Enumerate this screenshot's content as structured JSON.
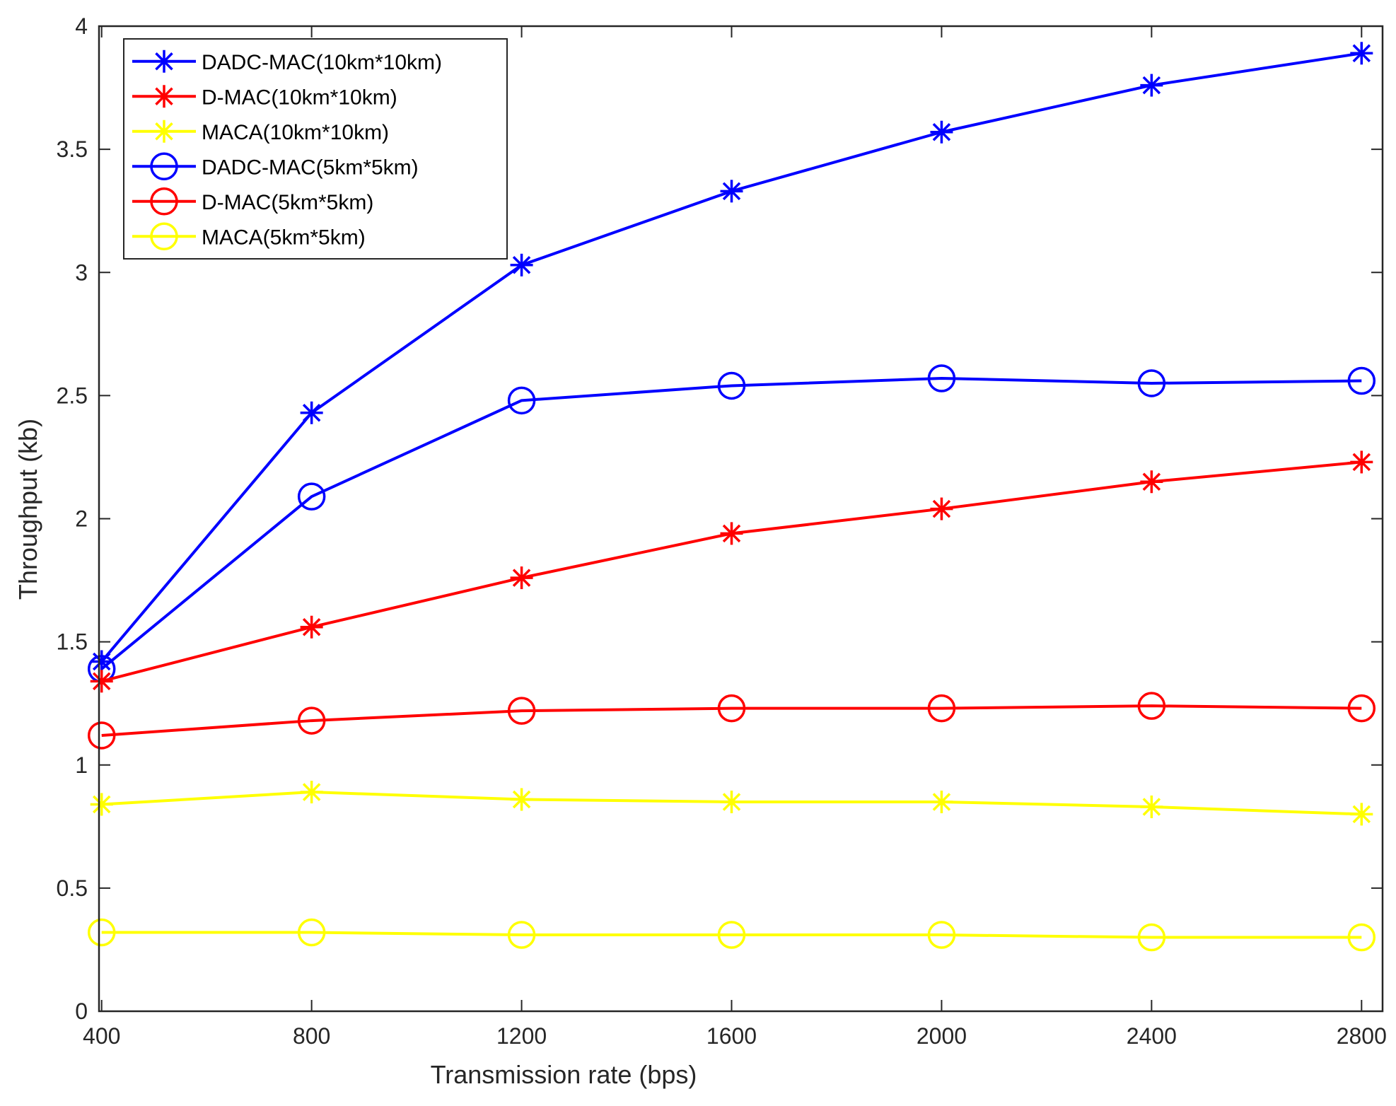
{
  "chart_data": {
    "type": "line",
    "title": "",
    "xlabel": "Transmission rate (bps)",
    "ylabel": "Throughput (kb)",
    "x": [
      400,
      800,
      1200,
      1600,
      2000,
      2400,
      2800
    ],
    "x_ticks": [
      400,
      800,
      1200,
      1600,
      2000,
      2400,
      2800
    ],
    "x_tick_labels": [
      "400",
      "800",
      "1200",
      "1600",
      "2000",
      "2400",
      "2800"
    ],
    "y_ticks": [
      0,
      0.5,
      1,
      1.5,
      2,
      2.5,
      3,
      3.5,
      4
    ],
    "y_tick_labels": [
      "0",
      "0.5",
      "1",
      "1.5",
      "2",
      "2.5",
      "3",
      "3.5",
      "4"
    ],
    "xlim": [
      395,
      2840
    ],
    "ylim": [
      0,
      4
    ],
    "grid": false,
    "legend_position": "top-left",
    "series": [
      {
        "name": "DADC-MAC(10km*10km)",
        "color": "#0000ff",
        "marker": "asterisk",
        "values": [
          1.42,
          2.43,
          3.03,
          3.33,
          3.57,
          3.76,
          3.89
        ]
      },
      {
        "name": "D-MAC(10km*10km)",
        "color": "#ff0000",
        "marker": "asterisk",
        "values": [
          1.34,
          1.56,
          1.76,
          1.94,
          2.04,
          2.15,
          2.23
        ]
      },
      {
        "name": "MACA(10km*10km)",
        "color": "#ffff00",
        "marker": "asterisk",
        "values": [
          0.84,
          0.89,
          0.86,
          0.85,
          0.85,
          0.83,
          0.8
        ]
      },
      {
        "name": "DADC-MAC(5km*5km)",
        "color": "#0000ff",
        "marker": "circle",
        "values": [
          1.39,
          2.09,
          2.48,
          2.54,
          2.57,
          2.55,
          2.56
        ]
      },
      {
        "name": "D-MAC(5km*5km)",
        "color": "#ff0000",
        "marker": "circle",
        "values": [
          1.12,
          1.18,
          1.22,
          1.23,
          1.23,
          1.24,
          1.23
        ]
      },
      {
        "name": "MACA(5km*5km)",
        "color": "#ffff00",
        "marker": "circle",
        "values": [
          0.32,
          0.32,
          0.31,
          0.31,
          0.31,
          0.3,
          0.3
        ]
      }
    ]
  }
}
